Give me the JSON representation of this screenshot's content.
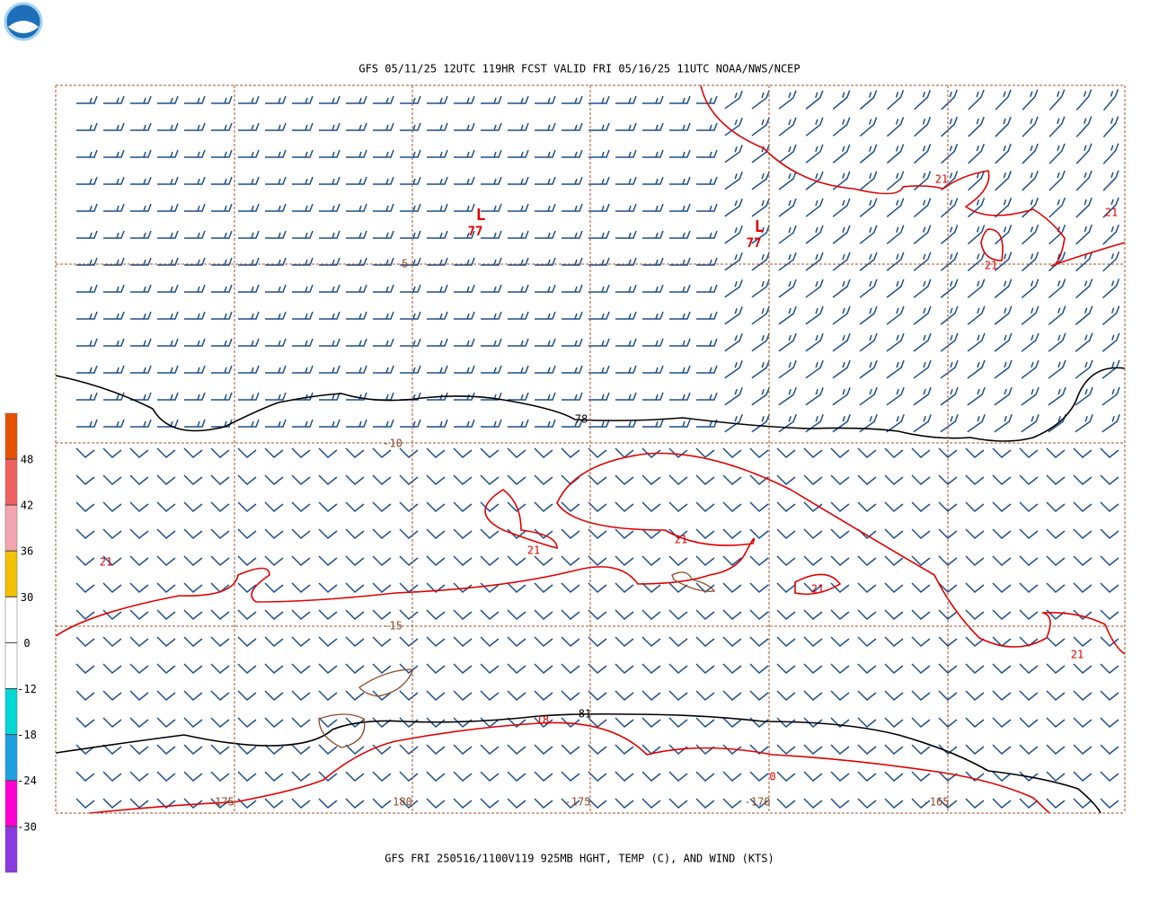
{
  "header": {
    "title": "GFS 05/11/25 12UTC 119HR FCST VALID FRI 05/16/25 11UTC NOAA/NWS/NCEP"
  },
  "footer": {
    "caption": "GFS FRI 250516/1100V119 925MB HGHT, TEMP (C), AND WIND (KTS)"
  },
  "colorbar": {
    "labels": [
      "48",
      "42",
      "36",
      "30",
      "0",
      "-12",
      "-18",
      "-24",
      "-30"
    ]
  },
  "latitude_labels": [
    "-5",
    "-10",
    "-15"
  ],
  "longitude_labels": [
    "175",
    "180",
    "-175",
    "-170",
    "-165"
  ],
  "height_labels": [
    "78",
    "81"
  ],
  "temperature_labels": [
    "21",
    "21",
    "21",
    "21",
    "21",
    "21",
    "21",
    "21",
    "18",
    "0"
  ],
  "lows": [
    {
      "symbol": "L",
      "value": "77"
    },
    {
      "symbol": "L",
      "value": "77"
    }
  ]
}
